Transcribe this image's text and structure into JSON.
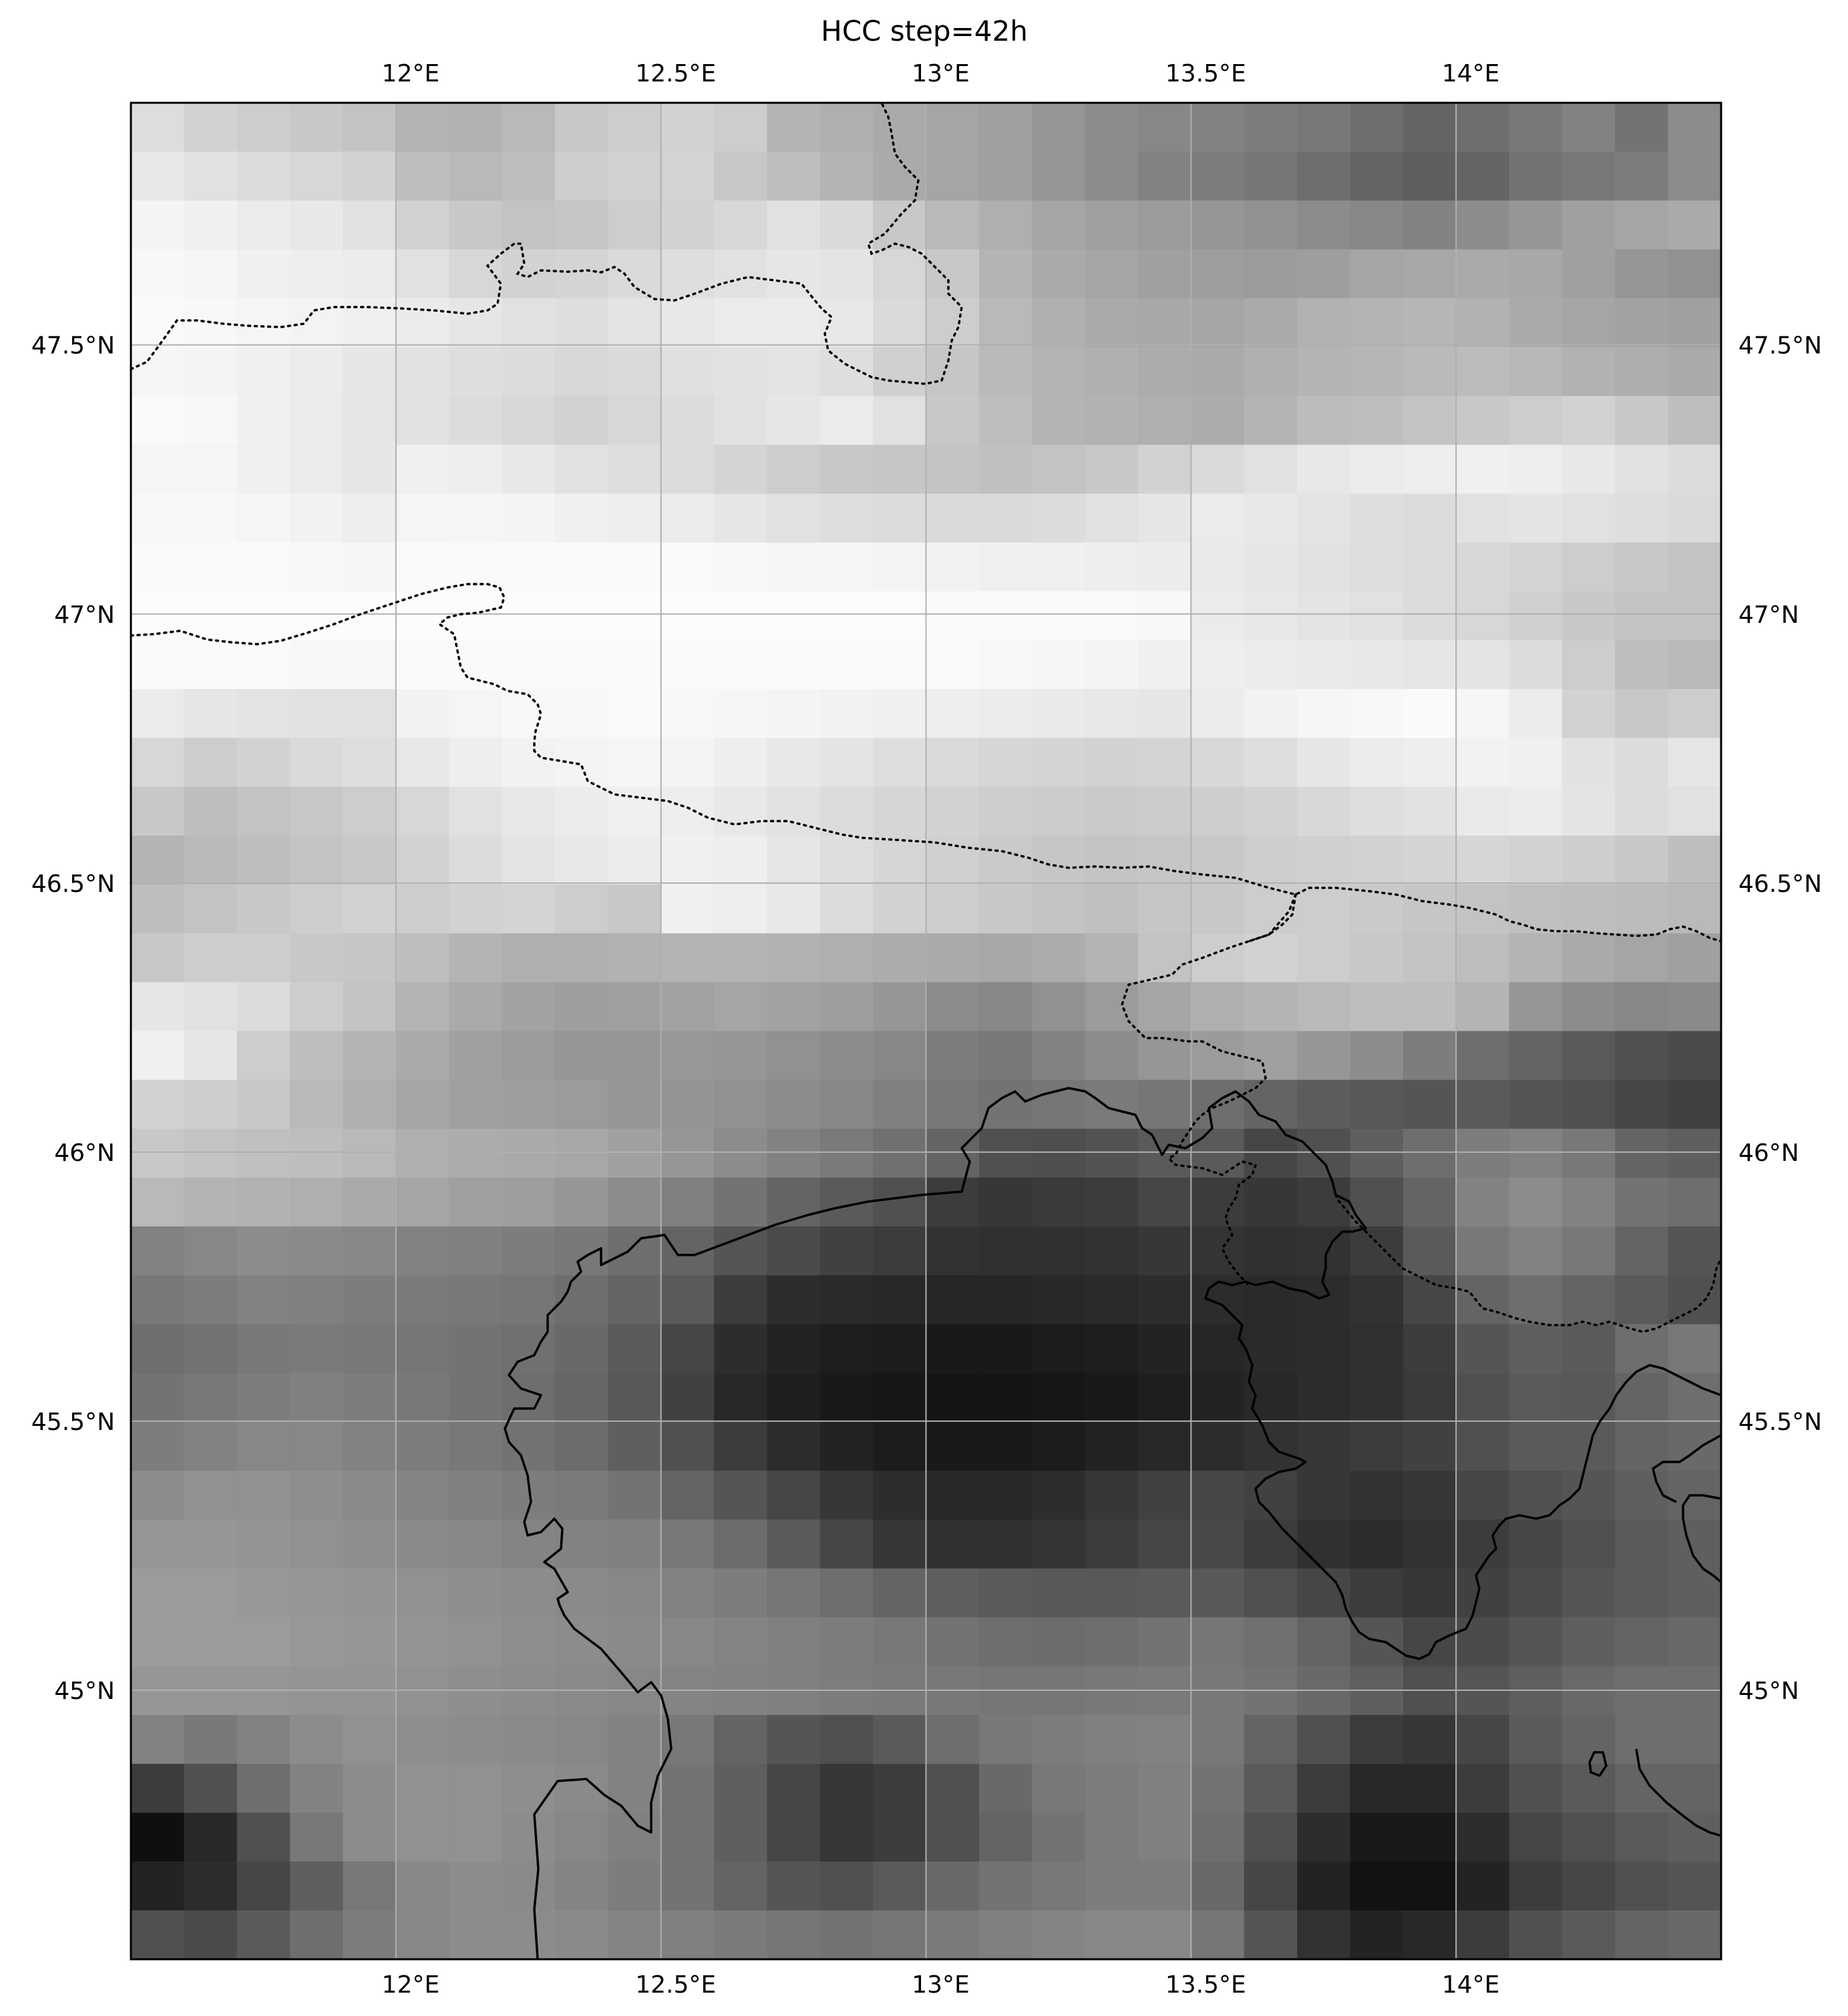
{
  "figure": {
    "title": "HCC step=42h"
  },
  "map": {
    "extent": {
      "lon_min": 11.5,
      "lon_max": 14.5,
      "lat_min": 44.5,
      "lat_max": 47.95
    },
    "colormap": "greys (0 = white, 1 = black)",
    "lon_ticks": [
      {
        "value": 12.0,
        "label": "12°E"
      },
      {
        "value": 12.5,
        "label": "12.5°E"
      },
      {
        "value": 13.0,
        "label": "13°E"
      },
      {
        "value": 13.5,
        "label": "13.5°E"
      },
      {
        "value": 14.0,
        "label": "14°E"
      }
    ],
    "lat_ticks": [
      {
        "value": 47.5,
        "label": "47.5°N"
      },
      {
        "value": 47.0,
        "label": "47°N"
      },
      {
        "value": 46.5,
        "label": "46.5°N"
      },
      {
        "value": 46.0,
        "label": "46°N"
      },
      {
        "value": 45.5,
        "label": "45.5°N"
      },
      {
        "value": 45.0,
        "label": "45°N"
      }
    ],
    "gridlines": true,
    "layers": [
      "high cloud cover field",
      "coastlines (solid)",
      "country borders (dotted)"
    ]
  }
}
